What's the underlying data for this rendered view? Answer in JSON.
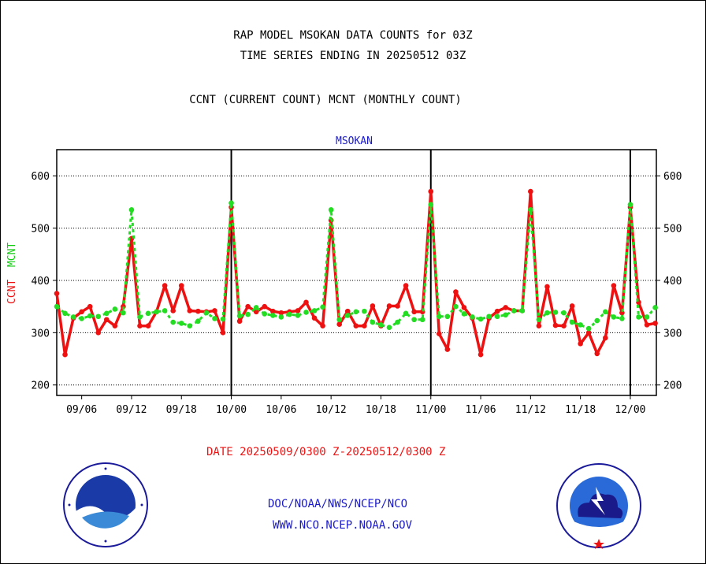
{
  "header": {
    "title1": "RAP MODEL MSOKAN DATA COUNTS for 03Z",
    "title2": "TIME SERIES ENDING IN 20250512 03Z",
    "title3": "CCNT (CURRENT COUNT) MCNT (MONTHLY COUNT)"
  },
  "footer": {
    "date_range": "DATE 20250509/0300 Z-20250512/0300 Z",
    "link1": "DOC/NOAA/NWS/NCEP/NCO",
    "link2": "WWW.NCO.NCEP.NOAA.GOV"
  },
  "colors": {
    "ccnt": "#ee1111",
    "mcnt": "#22dd22",
    "axis": "#000000",
    "chart_name": "#1a1acc"
  },
  "logos": {
    "left": "noaa-logo",
    "right": "national-weather-service-logo"
  },
  "chart_data": {
    "type": "line",
    "title": "MSOKAN",
    "ylabel": "CCNT  MCNT",
    "ylabel_parts": [
      "CCNT",
      "MCNT"
    ],
    "ylim": [
      180,
      650
    ],
    "yticks": [
      200,
      300,
      400,
      500,
      600
    ],
    "grid": true,
    "x_tick_labels": [
      "09/06",
      "09/12",
      "09/18",
      "10/00",
      "10/06",
      "10/12",
      "10/18",
      "11/00",
      "11/06",
      "11/12",
      "11/18",
      "12/00"
    ],
    "x_tick_index": [
      3,
      9,
      15,
      21,
      27,
      33,
      39,
      45,
      51,
      57,
      63,
      69
    ],
    "day_boundary_index": [
      21,
      45,
      69
    ],
    "n_points": 73,
    "series": [
      {
        "name": "CCNT",
        "color": "#ee1111",
        "values": [
          375,
          258,
          328,
          340,
          350,
          300,
          325,
          313,
          350,
          480,
          313,
          313,
          340,
          390,
          342,
          390,
          342,
          341,
          340,
          342,
          300,
          540,
          322,
          350,
          340,
          350,
          341,
          338,
          340,
          342,
          358,
          328,
          313,
          515,
          316,
          341,
          313,
          313,
          351,
          313,
          351,
          351,
          390,
          340,
          340,
          570,
          298,
          268,
          378,
          348,
          328,
          258,
          328,
          341,
          348,
          342,
          342,
          570,
          313,
          388,
          314,
          313,
          351,
          279,
          300,
          260,
          290,
          390,
          338,
          540,
          358,
          315,
          318
        ]
      },
      {
        "name": "MCNT",
        "color": "#22dd22",
        "values": [
          350,
          337,
          330,
          327,
          332,
          331,
          337,
          345,
          338,
          535,
          330,
          337,
          340,
          342,
          320,
          318,
          313,
          322,
          338,
          327,
          326,
          548,
          332,
          335,
          348,
          336,
          333,
          330,
          335,
          333,
          339,
          342,
          349,
          535,
          325,
          333,
          340,
          341,
          320,
          315,
          310,
          320,
          337,
          325,
          325,
          545,
          331,
          331,
          350,
          336,
          330,
          326,
          331,
          331,
          334,
          342,
          342,
          535,
          325,
          338,
          339,
          338,
          320,
          315,
          308,
          323,
          340,
          330,
          327,
          545,
          330,
          330,
          348
        ]
      }
    ]
  }
}
